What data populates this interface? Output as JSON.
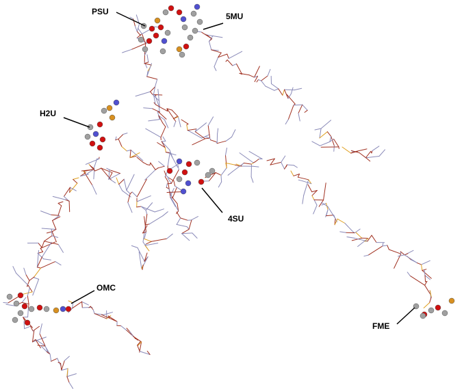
{
  "labels": {
    "psu": "PSU",
    "mu5": "5MU",
    "h2u": "H2U",
    "su4": "4SU",
    "omc": "OMC",
    "fme": "FME"
  },
  "colors": {
    "background": "#ffffff",
    "backbone_wire": "#a03020",
    "base_wire": "#8a8ab8",
    "phosphate": "#e0a020",
    "carbon_atom": "#a0a0a0",
    "oxygen_atom": "#d01010",
    "nitrogen_atom": "#5050d0",
    "phosphorus_atom": "#d89020",
    "sulfur_atom": "#d8b020",
    "leader_line": "#000000"
  },
  "icons": {
    "molecule": "trna-wireframe-molecule",
    "atom": "ball-atom-icon"
  }
}
